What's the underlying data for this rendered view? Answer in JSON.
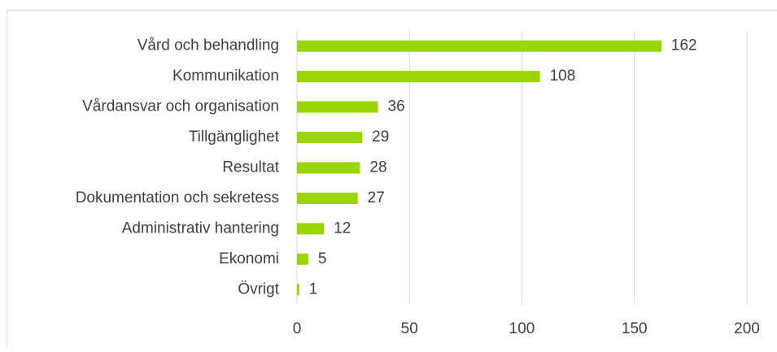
{
  "chart_data": {
    "type": "bar",
    "orientation": "horizontal",
    "categories": [
      "Vård och behandling",
      "Kommunikation",
      "Vårdansvar och organisation",
      "Tillgänglighet",
      "Resultat",
      "Dokumentation och sekretess",
      "Administrativ hantering",
      "Ekonomi",
      "Övrigt"
    ],
    "values": [
      162,
      108,
      36,
      29,
      28,
      27,
      12,
      5,
      1
    ],
    "color": "#99d600",
    "xlim": [
      0,
      200
    ],
    "xticks": [
      0,
      50,
      100,
      150,
      200
    ],
    "grid": true
  }
}
